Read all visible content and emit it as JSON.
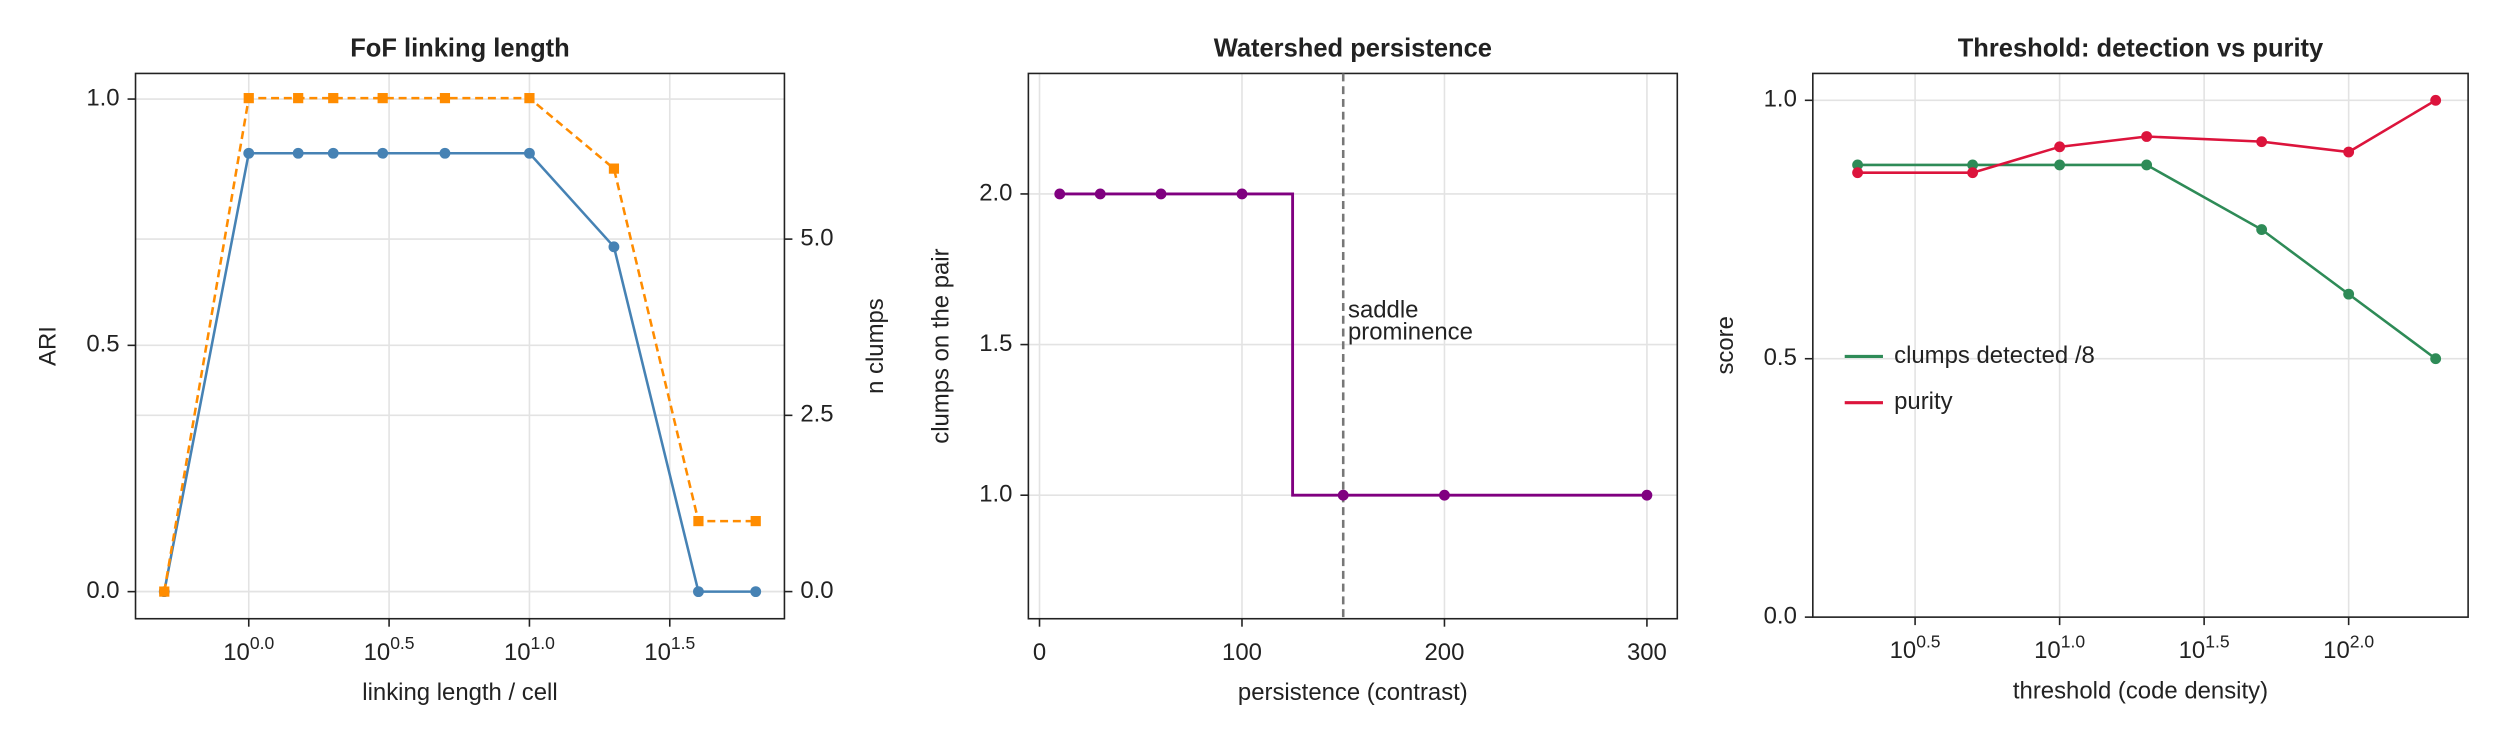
{
  "chart_data": [
    {
      "type": "line",
      "title": "FoF linking length",
      "xlabel": "linking length / cell",
      "xscale": "log",
      "x": [
        0.5,
        1,
        1.5,
        2,
        3,
        5,
        10,
        20,
        40,
        64
      ],
      "xlim": [
        0.395,
        81
      ],
      "xticks": [
        {
          "value": 1,
          "label": "10^0.0"
        },
        {
          "value": 3.162,
          "label": "10^0.5"
        },
        {
          "value": 10,
          "label": "10^1.0"
        },
        {
          "value": 31.62,
          "label": "10^1.5"
        }
      ],
      "ylim": [
        -0.055,
        1.052
      ],
      "yticks": [
        {
          "value": 0,
          "label": "0.0"
        },
        {
          "value": 0.5,
          "label": "0.5"
        },
        {
          "value": 1,
          "label": "1.0"
        }
      ],
      "y2lim": [
        -0.385,
        7.35
      ],
      "y2ticks": [
        {
          "value": 0,
          "label": "0.0"
        },
        {
          "value": 2.5,
          "label": "2.5"
        },
        {
          "value": 5,
          "label": "5.0"
        }
      ],
      "grid": true,
      "series": [
        {
          "name": "ARI",
          "color": "#4682b4",
          "marker": "circle",
          "values": [
            0,
            0.89,
            0.89,
            0.89,
            0.89,
            0.89,
            0.89,
            0.7,
            0,
            0
          ]
        },
        {
          "name": "n clumps",
          "color": "#ff8c00",
          "marker": "square",
          "dashed": true,
          "axis": "y2",
          "values": [
            0,
            7,
            7,
            7,
            7,
            7,
            7,
            6,
            1,
            1
          ]
        }
      ]
    },
    {
      "type": "step",
      "title": "Watershed persistence",
      "xlabel": "persistence (contrast)",
      "ylabel": "clumps on the pair",
      "x": [
        10,
        30,
        60,
        100,
        150,
        200,
        300
      ],
      "values": [
        2,
        2,
        2,
        2,
        1,
        1,
        1
      ],
      "color": "#800080",
      "xlim": [
        -5.5,
        315
      ],
      "xticks": [
        0,
        100,
        200,
        300
      ],
      "ylim": [
        0.59,
        2.4
      ],
      "yticks": [
        {
          "value": 1,
          "label": "1.0"
        },
        {
          "value": 1.5,
          "label": "1.5"
        },
        {
          "value": 2,
          "label": "2.0"
        }
      ],
      "grid": true,
      "vline": {
        "x": 150,
        "text": [
          "saddle",
          "prominence"
        ]
      }
    },
    {
      "type": "line",
      "title": "Threshold: detection vs purity",
      "xlabel": "threshold (code density)",
      "ylabel": "score",
      "xscale": "log",
      "x": [
        2,
        5,
        10,
        20,
        50,
        100,
        200
      ],
      "xlim": [
        1.4,
        259
      ],
      "xticks": [
        {
          "value": 3.162,
          "label": "10^0.5"
        },
        {
          "value": 10,
          "label": "10^1.0"
        },
        {
          "value": 31.62,
          "label": "10^1.5"
        },
        {
          "value": 100,
          "label": "10^2.0"
        }
      ],
      "ylim": [
        0,
        1.052
      ],
      "yticks": [
        {
          "value": 0,
          "label": "0.0"
        },
        {
          "value": 0.5,
          "label": "0.5"
        },
        {
          "value": 1,
          "label": "1.0"
        }
      ],
      "grid": true,
      "legend": "left",
      "series": [
        {
          "name": "clumps detected /8",
          "color": "#2e8b57",
          "marker": "circle",
          "values": [
            0.875,
            0.875,
            0.875,
            0.875,
            0.75,
            0.625,
            0.5
          ]
        },
        {
          "name": "purity",
          "color": "#dc143c",
          "marker": "circle",
          "values": [
            0.86,
            0.86,
            0.91,
            0.93,
            0.92,
            0.9,
            1.0
          ]
        }
      ]
    }
  ]
}
